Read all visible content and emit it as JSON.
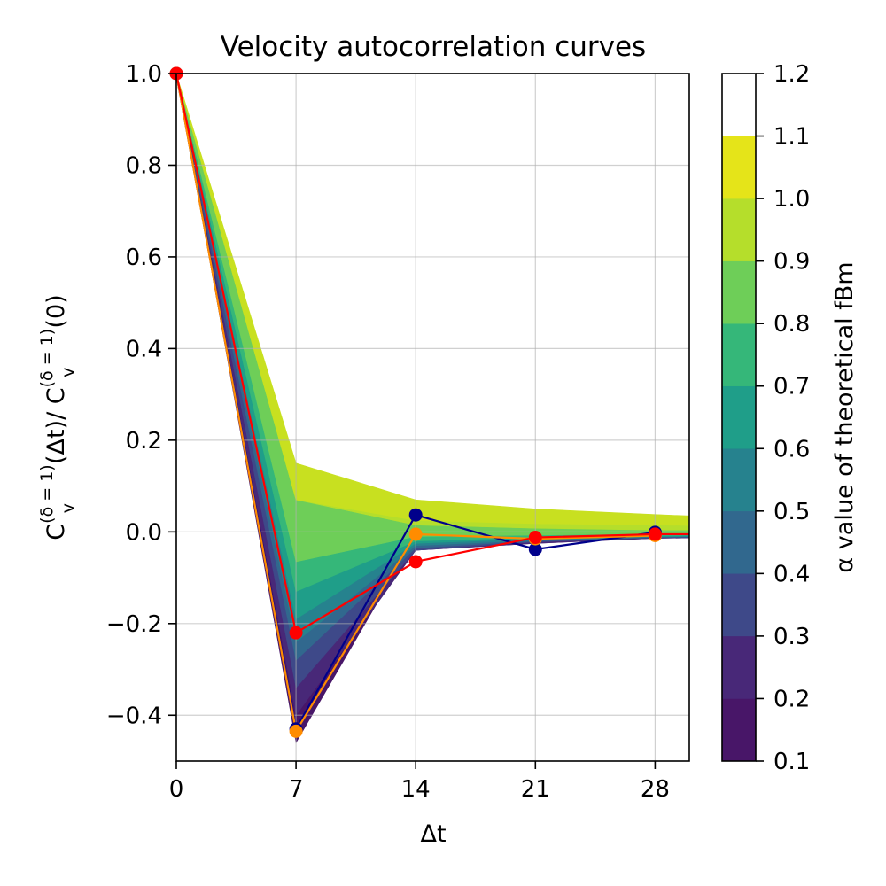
{
  "chart_data": {
    "type": "line",
    "title": "Velocity autocorrelation curves",
    "xlabel": "Δt",
    "ylabel": {
      "base": "C",
      "sub": "v",
      "sup": "(δ = 1)",
      "arg1": "(Δt)/ ",
      "arg2": "(0)"
    },
    "xlim": [
      0,
      30
    ],
    "ylim": [
      -0.5,
      1.0
    ],
    "xticks": [
      0,
      7,
      14,
      21,
      28
    ],
    "yticks": [
      -0.4,
      -0.2,
      0.0,
      0.2,
      0.4,
      0.6,
      0.8,
      1.0
    ],
    "ytick_labels": [
      "−0.4",
      "−0.2",
      "0.0",
      "0.2",
      "0.4",
      "0.6",
      "0.8",
      "1.0"
    ],
    "grid": true,
    "x": [
      0,
      7,
      14,
      21,
      28,
      30
    ],
    "filled_contours": {
      "description_levels": [
        0.1,
        0.2,
        0.3,
        0.4,
        0.5,
        0.6,
        0.7,
        0.8,
        0.9,
        1.0,
        1.1,
        1.2
      ],
      "bands": [
        {
          "alpha_range": [
            0.1,
            0.2
          ],
          "color": "#481668"
        },
        {
          "alpha_range": [
            0.2,
            0.3
          ],
          "color": "#482878"
        },
        {
          "alpha_range": [
            0.3,
            0.4
          ],
          "color": "#3e4989"
        },
        {
          "alpha_range": [
            0.4,
            0.5
          ],
          "color": "#31688e"
        },
        {
          "alpha_range": [
            0.5,
            0.6
          ],
          "color": "#26828e"
        },
        {
          "alpha_range": [
            0.6,
            0.7
          ],
          "color": "#1f9e89"
        },
        {
          "alpha_range": [
            0.7,
            0.8
          ],
          "color": "#35b779"
        },
        {
          "alpha_range": [
            0.8,
            0.9
          ],
          "color": "#6ece58"
        },
        {
          "alpha_range": [
            0.9,
            1.0
          ],
          "color": "#b5de2b"
        },
        {
          "alpha_range": [
            1.0,
            1.1
          ],
          "color": "#c8e020"
        }
      ],
      "boundaries": [
        [
          1.0,
          -0.46,
          -0.01,
          -0.013,
          -0.013,
          -0.013
        ],
        [
          1.0,
          -0.4,
          -0.04,
          -0.025,
          -0.014,
          -0.013
        ],
        [
          1.0,
          -0.34,
          -0.04,
          -0.022,
          -0.013,
          -0.012
        ],
        [
          1.0,
          -0.28,
          -0.035,
          -0.02,
          -0.012,
          -0.011
        ],
        [
          1.0,
          -0.24,
          -0.03,
          -0.018,
          -0.011,
          -0.01
        ],
        [
          1.0,
          -0.19,
          -0.025,
          -0.015,
          -0.01,
          -0.009
        ],
        [
          1.0,
          -0.13,
          -0.02,
          -0.012,
          -0.008,
          -0.007
        ],
        [
          1.0,
          -0.065,
          -0.01,
          -0.007,
          -0.004,
          -0.004
        ],
        [
          1.0,
          0.07,
          0.015,
          0.008,
          0.004,
          0.004
        ],
        [
          1.0,
          0.07,
          0.025,
          0.018,
          0.015,
          0.014
        ],
        [
          1.0,
          0.15,
          0.07,
          0.05,
          0.038,
          0.035
        ]
      ]
    },
    "series": [
      {
        "color": "#00008b",
        "x": [
          0,
          7,
          14,
          21,
          28
        ],
        "values": [
          1.0,
          -0.43,
          0.037,
          -0.038,
          -0.001
        ]
      },
      {
        "color": "#ff8c00",
        "x": [
          0,
          7,
          14,
          21,
          28
        ],
        "values": [
          1.0,
          -0.435,
          -0.005,
          -0.015,
          -0.008
        ]
      },
      {
        "color": "#ff0000",
        "x": [
          0,
          7,
          14,
          21,
          28
        ],
        "values": [
          1.0,
          -0.22,
          -0.065,
          -0.012,
          -0.005
        ]
      }
    ],
    "colorbar": {
      "label": "α value of theoretical fBm",
      "ticks": [
        0.1,
        0.2,
        0.3,
        0.4,
        0.5,
        0.6,
        0.7,
        0.8,
        0.9,
        1.0,
        1.1,
        1.2
      ],
      "tick_labels": [
        "0.1",
        "0.2",
        "0.3",
        "0.4",
        "0.5",
        "0.6",
        "0.7",
        "0.8",
        "0.9",
        "1.0",
        "1.1",
        "1.2"
      ],
      "colors": [
        "#481668",
        "#482878",
        "#3e4989",
        "#31688e",
        "#26828e",
        "#1f9e89",
        "#35b779",
        "#6ece58",
        "#b5de2b",
        "#e5e31a",
        "#b7dc31"
      ],
      "colors_bottom_to_top": [
        "#481668",
        "#482878",
        "#3e4989",
        "#31688e",
        "#26828e",
        "#1f9e89",
        "#35b779",
        "#6ece58",
        "#b5de2b",
        "#e5e419"
      ]
    }
  }
}
